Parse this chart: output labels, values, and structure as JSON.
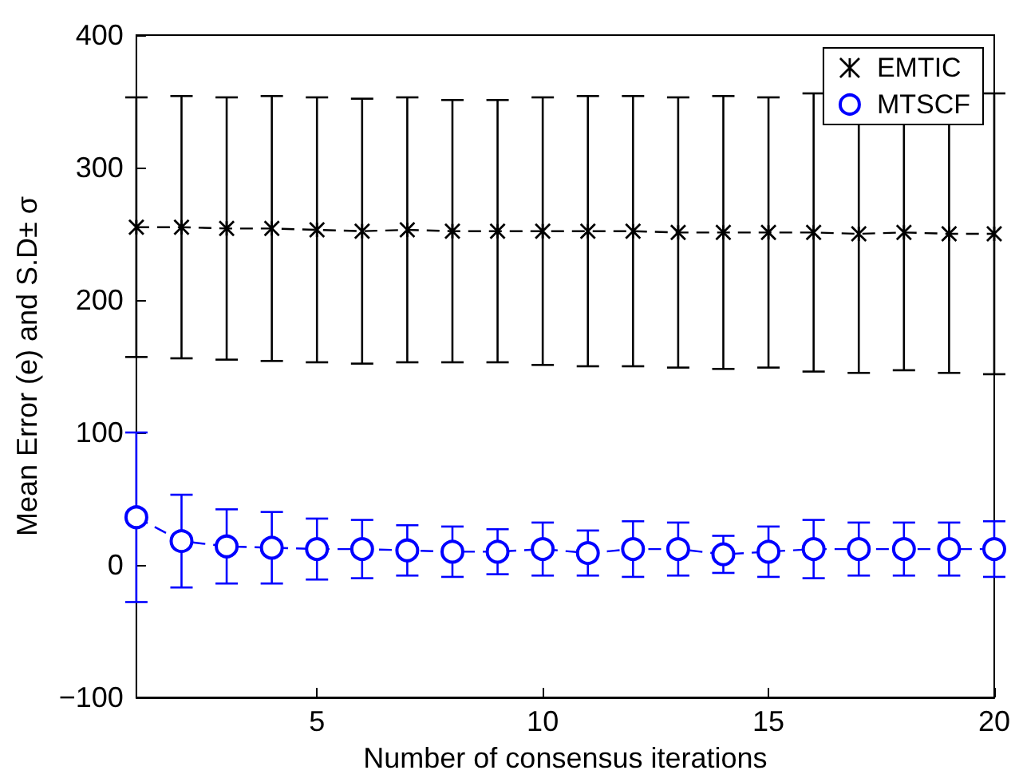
{
  "chart_data": {
    "type": "line",
    "xlabel": "Number of consensus iterations",
    "ylabel": "Mean Error (e) and S.D± σ",
    "x": [
      1,
      2,
      3,
      4,
      5,
      6,
      7,
      8,
      9,
      10,
      11,
      12,
      13,
      14,
      15,
      16,
      17,
      18,
      19,
      20
    ],
    "xlim": [
      1,
      20
    ],
    "xticks": [
      5,
      10,
      15,
      20
    ],
    "ylim": [
      -100,
      400
    ],
    "yticks": [
      -100,
      0,
      100,
      200,
      300,
      400
    ],
    "grid": false,
    "legend": "top right",
    "line_style": "dashed",
    "series": [
      {
        "name": "EMTIC",
        "color": "#000000",
        "marker": "cross",
        "values": [
          255,
          255,
          254,
          254,
          253,
          252,
          253,
          252,
          252,
          252,
          252,
          252,
          251,
          251,
          251,
          251,
          250,
          251,
          250,
          250
        ],
        "errors": [
          98,
          99,
          99,
          100,
          100,
          100,
          100,
          99,
          99,
          101,
          102,
          102,
          102,
          103,
          102,
          105,
          105,
          104,
          105,
          106
        ]
      },
      {
        "name": "MTSCF",
        "color": "#0000ff",
        "marker": "circle",
        "values": [
          36,
          18,
          14,
          13,
          12,
          12,
          11,
          10,
          10,
          12,
          9,
          12,
          12,
          8,
          10,
          12,
          12,
          12,
          12,
          12
        ],
        "errors": [
          64,
          35,
          28,
          27,
          23,
          22,
          19,
          19,
          17,
          20,
          17,
          21,
          20,
          14,
          19,
          22,
          20,
          20,
          20,
          21
        ]
      }
    ]
  }
}
